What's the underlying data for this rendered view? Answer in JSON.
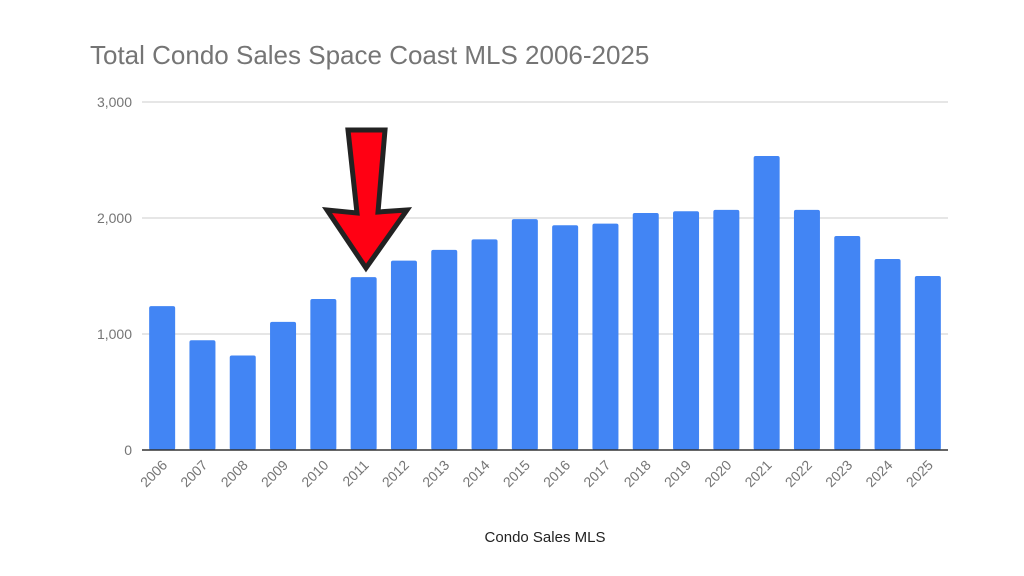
{
  "chart_data": {
    "type": "bar",
    "title": "Total Condo Sales Space Coast MLS 2006-2025",
    "xlabel": "Condo Sales MLS",
    "ylabel": "",
    "categories": [
      "2006",
      "2007",
      "2008",
      "2009",
      "2010",
      "2011",
      "2012",
      "2013",
      "2014",
      "2015",
      "2016",
      "2017",
      "2018",
      "2019",
      "2020",
      "2021",
      "2022",
      "2023",
      "2024",
      "2025"
    ],
    "values": [
      1240,
      946,
      815,
      1105,
      1302,
      1490,
      1633,
      1725,
      1816,
      1990,
      1937,
      1952,
      2043,
      2058,
      2070,
      2534,
      2070,
      1845,
      1647,
      1500
    ],
    "ylim": [
      0,
      3000
    ],
    "yticks": [
      "0",
      "1,000",
      "2,000",
      "3,000"
    ],
    "ytick_values": [
      0,
      1000,
      2000,
      3000
    ],
    "grid": true,
    "legend": "none",
    "bar_color": "#4285f4",
    "annotation": {
      "type": "arrow",
      "icon": "red-down-arrow-icon",
      "points_to": "2011",
      "color": "#ff0013"
    }
  }
}
